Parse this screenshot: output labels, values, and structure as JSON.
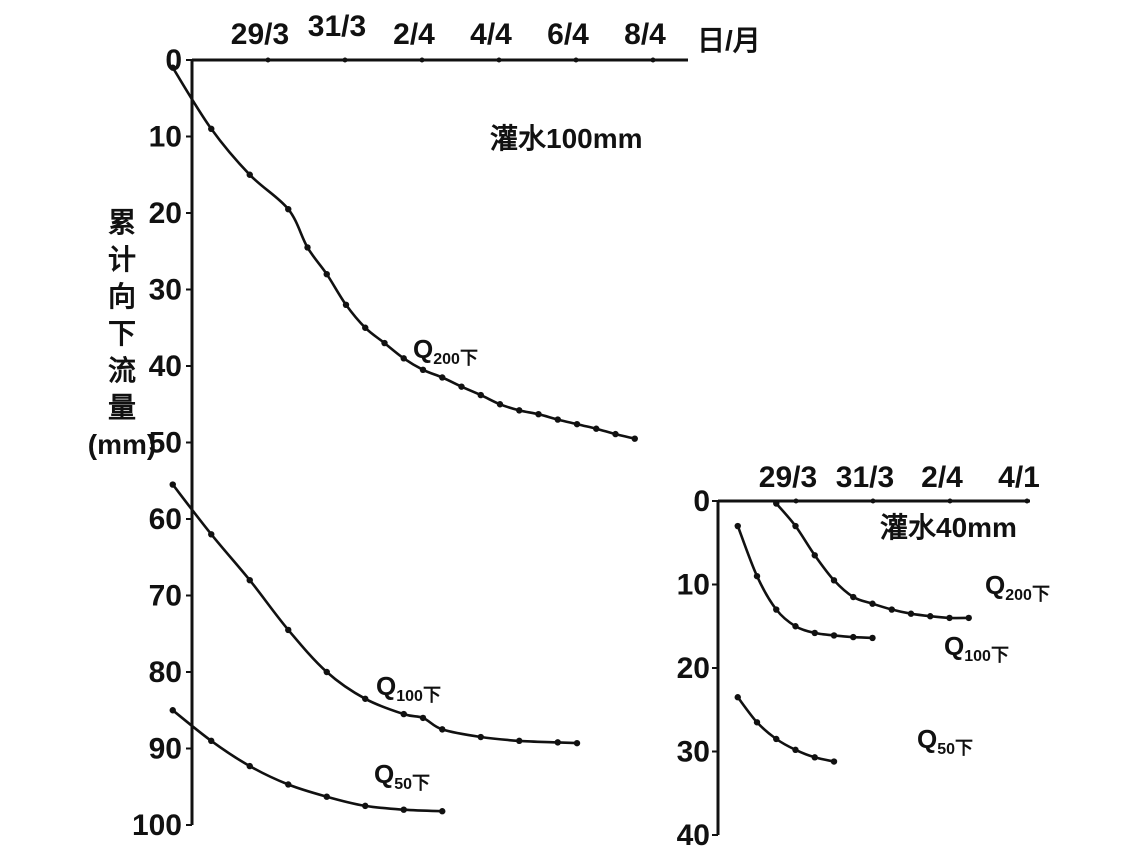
{
  "chart_data": [
    {
      "type": "line",
      "annotation": "灌水100mm",
      "xlabel": "日/月",
      "ylabel_lines": [
        "累",
        "计",
        "向",
        "下",
        "流",
        "量",
        "(mm)"
      ],
      "x_ticks": [
        "29/3",
        "31/3",
        "2/4",
        "4/4",
        "6/4",
        "8/4"
      ],
      "y_ticks": [
        "0",
        "10",
        "20",
        "30",
        "40",
        "50",
        "60",
        "70",
        "80",
        "90",
        "100"
      ],
      "ylim": [
        0,
        100
      ],
      "y_inverted": true,
      "series": [
        {
          "name_main": "Q",
          "name_sub": "200",
          "name_tail": "下",
          "x": [
            -0.5,
            0.5,
            1.5,
            2.5,
            3.0,
            3.5,
            4.0,
            4.5,
            5.0,
            5.5,
            6.0,
            6.5,
            7.0,
            7.5,
            8.0,
            8.5,
            9.0,
            9.5,
            10.0,
            10.5,
            11.0,
            11.5
          ],
          "y": [
            1,
            9,
            15,
            19.5,
            24.5,
            28,
            32,
            35,
            37,
            39,
            40.5,
            41.5,
            42.7,
            43.8,
            45,
            45.8,
            46.3,
            47,
            47.6,
            48.2,
            48.9,
            49.5
          ]
        },
        {
          "name_main": "Q",
          "name_sub": "100",
          "name_tail": "下",
          "x": [
            -0.5,
            0.5,
            1.5,
            2.5,
            3.5,
            4.5,
            5.5,
            6.0,
            6.5,
            7.5,
            8.5,
            9.5,
            10.0
          ],
          "y": [
            55.5,
            62,
            68,
            74.5,
            80,
            83.5,
            85.5,
            86,
            87.5,
            88.5,
            89,
            89.2,
            89.3
          ]
        },
        {
          "name_main": "Q",
          "name_sub": "50",
          "name_tail": "下",
          "x": [
            -0.5,
            0.5,
            1.5,
            2.5,
            3.5,
            4.5,
            5.5,
            6.5
          ],
          "y": [
            85,
            89,
            92.3,
            94.7,
            96.3,
            97.5,
            98,
            98.2
          ]
        }
      ]
    },
    {
      "type": "line",
      "annotation": "灌水40mm",
      "x_ticks": [
        "29/3",
        "31/3",
        "2/4",
        "4/1"
      ],
      "y_ticks": [
        "0",
        "10",
        "20",
        "30",
        "40"
      ],
      "ylim": [
        0,
        40
      ],
      "y_inverted": true,
      "series": [
        {
          "name_main": "Q",
          "name_sub": "200",
          "name_tail": "下",
          "x": [
            0.5,
            1.0,
            1.5,
            2.0,
            2.5,
            3.0,
            3.5,
            4.0,
            4.5,
            5.0,
            5.5
          ],
          "y": [
            0.3,
            3,
            6.5,
            9.5,
            11.5,
            12.3,
            13,
            13.5,
            13.8,
            14,
            14
          ]
        },
        {
          "name_main": "Q",
          "name_sub": "100",
          "name_tail": "下",
          "x": [
            -0.5,
            0.0,
            0.5,
            1.0,
            1.5,
            2.0,
            2.5,
            3.0
          ],
          "y": [
            3,
            9,
            13,
            15,
            15.8,
            16.1,
            16.3,
            16.4
          ]
        },
        {
          "name_main": "Q",
          "name_sub": "50",
          "name_tail": "下",
          "x": [
            -0.5,
            0.0,
            0.5,
            1.0,
            1.5,
            2.0
          ],
          "y": [
            23.5,
            26.5,
            28.5,
            29.8,
            30.7,
            31.2
          ]
        }
      ]
    }
  ]
}
